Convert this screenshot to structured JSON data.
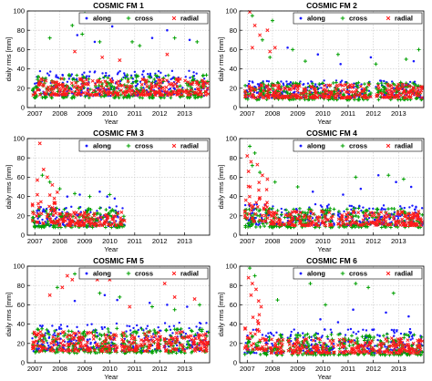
{
  "chart_data": [
    {
      "type": "scatter",
      "title": "COSMIC FM 1",
      "xlabel": "Year",
      "ylabel": "daily rms [mm]",
      "xlim": [
        2006.7,
        2014.0
      ],
      "ylim": [
        0,
        100
      ],
      "xticks": [
        "2007",
        "2008",
        "2009",
        "2010",
        "2011",
        "2012",
        "2013"
      ],
      "yticks": [
        "0",
        "20",
        "40",
        "60",
        "80",
        "100"
      ],
      "grid": true,
      "legend_position": "top-right",
      "legend": [
        "along",
        "cross",
        "radial"
      ],
      "dense_bands": [
        {
          "series": "along",
          "x": [
            2006.9,
            2013.95
          ],
          "y": [
            12,
            38
          ]
        },
        {
          "series": "cross",
          "x": [
            2006.9,
            2013.95
          ],
          "y": [
            10,
            35
          ]
        },
        {
          "series": "radial",
          "x": [
            2006.9,
            2013.95
          ],
          "y": [
            13,
            30
          ]
        }
      ],
      "outliers": [
        {
          "series": "along",
          "points": [
            [
              2009.9,
              97
            ],
            [
              2010.1,
              84
            ],
            [
              2010.6,
              95
            ],
            [
              2012.3,
              80
            ],
            [
              2008.7,
              75
            ],
            [
              2011.7,
              72
            ],
            [
              2013.2,
              70
            ],
            [
              2009.4,
              68
            ]
          ]
        },
        {
          "series": "cross",
          "points": [
            [
              2008.5,
              85
            ],
            [
              2009.0,
              97
            ],
            [
              2009.1,
              89
            ],
            [
              2007.6,
              72
            ],
            [
              2008.9,
              76
            ],
            [
              2009.6,
              68
            ],
            [
              2010.9,
              68
            ],
            [
              2012.6,
              72
            ],
            [
              2013.5,
              68
            ],
            [
              2011.2,
              64
            ]
          ]
        },
        {
          "series": "radial",
          "points": [
            [
              2008.6,
              58
            ],
            [
              2009.7,
              52
            ],
            [
              2012.3,
              55
            ],
            [
              2010.4,
              49
            ]
          ]
        }
      ],
      "gaps": []
    },
    {
      "type": "scatter",
      "title": "COSMIC FM 2",
      "xlabel": "Year",
      "ylabel": "daily rms [mm]",
      "xlim": [
        2006.7,
        2014.0
      ],
      "ylim": [
        0,
        100
      ],
      "xticks": [
        "2007",
        "2008",
        "2009",
        "2010",
        "2011",
        "2012",
        "2013"
      ],
      "yticks": [
        "0",
        "20",
        "40",
        "60",
        "80",
        "100"
      ],
      "grid": true,
      "legend_position": "top-right",
      "legend": [
        "along",
        "cross",
        "radial"
      ],
      "dense_bands": [
        {
          "series": "along",
          "x": [
            2006.9,
            2013.95
          ],
          "y": [
            10,
            28
          ]
        },
        {
          "series": "cross",
          "x": [
            2006.9,
            2013.95
          ],
          "y": [
            8,
            26
          ]
        },
        {
          "series": "radial",
          "x": [
            2006.9,
            2013.95
          ],
          "y": [
            10,
            24
          ]
        }
      ],
      "outliers": [
        {
          "series": "along",
          "points": [
            [
              2008.6,
              62
            ],
            [
              2009.8,
              55
            ],
            [
              2011.9,
              52
            ],
            [
              2013.6,
              48
            ],
            [
              2010.7,
              45
            ]
          ]
        },
        {
          "series": "cross",
          "points": [
            [
              2007.2,
              95
            ],
            [
              2008.0,
              90
            ],
            [
              2007.6,
              70
            ],
            [
              2008.8,
              60
            ],
            [
              2007.9,
              52
            ],
            [
              2009.3,
              48
            ],
            [
              2010.6,
              55
            ],
            [
              2012.1,
              45
            ],
            [
              2013.3,
              50
            ],
            [
              2013.8,
              60
            ]
          ]
        },
        {
          "series": "radial",
          "points": [
            [
              2007.1,
              99
            ],
            [
              2007.3,
              85
            ],
            [
              2007.5,
              75
            ],
            [
              2007.8,
              80
            ],
            [
              2007.2,
              62
            ],
            [
              2008.1,
              62
            ],
            [
              2007.9,
              58
            ]
          ]
        }
      ],
      "gaps": [
        [
          2011.9,
          2012.1
        ]
      ]
    },
    {
      "type": "scatter",
      "title": "COSMIC FM 3",
      "xlabel": "Year",
      "ylabel": "daily rms [mm]",
      "xlim": [
        2006.7,
        2014.0
      ],
      "ylim": [
        0,
        100
      ],
      "xticks": [
        "2007",
        "2008",
        "2009",
        "2010",
        "2011",
        "2012",
        "2013"
      ],
      "yticks": [
        "0",
        "20",
        "40",
        "60",
        "80",
        "100"
      ],
      "grid": true,
      "legend_position": "top-right",
      "legend": [
        "along",
        "cross",
        "radial"
      ],
      "dense_bands": [
        {
          "series": "along",
          "x": [
            2006.9,
            2010.6
          ],
          "y": [
            9,
            30
          ]
        },
        {
          "series": "cross",
          "x": [
            2006.9,
            2010.6
          ],
          "y": [
            8,
            28
          ]
        },
        {
          "series": "radial",
          "x": [
            2006.9,
            2007.9
          ],
          "y": [
            12,
            48
          ]
        },
        {
          "series": "radial",
          "x": [
            2007.9,
            2010.6
          ],
          "y": [
            10,
            24
          ]
        }
      ],
      "outliers": [
        {
          "series": "along",
          "points": [
            [
              2009.6,
              45
            ],
            [
              2009.9,
              40
            ],
            [
              2008.8,
              42
            ],
            [
              2010.2,
              38
            ],
            [
              2008.3,
              40
            ]
          ]
        },
        {
          "series": "cross",
          "points": [
            [
              2007.3,
              62
            ],
            [
              2007.6,
              55
            ],
            [
              2008.0,
              48
            ],
            [
              2008.6,
              43
            ],
            [
              2009.2,
              40
            ],
            [
              2010.0,
              42
            ]
          ]
        },
        {
          "series": "radial",
          "points": [
            [
              2007.2,
              95
            ],
            [
              2007.35,
              68
            ],
            [
              2007.5,
              60
            ],
            [
              2007.1,
              57
            ],
            [
              2007.7,
              52
            ]
          ]
        }
      ],
      "gaps": []
    },
    {
      "type": "scatter",
      "title": "COSMIC FM 4",
      "xlabel": "Year",
      "ylabel": "daily rms [mm]",
      "xlim": [
        2006.7,
        2014.0
      ],
      "ylim": [
        0,
        100
      ],
      "xticks": [
        "2007",
        "2008",
        "2009",
        "2010",
        "2011",
        "2012",
        "2013"
      ],
      "yticks": [
        "0",
        "20",
        "40",
        "60",
        "80",
        "100"
      ],
      "grid": true,
      "legend_position": "top-right",
      "legend": [
        "along",
        "cross",
        "radial"
      ],
      "dense_bands": [
        {
          "series": "along",
          "x": [
            2006.9,
            2013.95
          ],
          "y": [
            10,
            32
          ]
        },
        {
          "series": "cross",
          "x": [
            2006.9,
            2013.95
          ],
          "y": [
            8,
            28
          ]
        },
        {
          "series": "radial",
          "x": [
            2006.9,
            2007.9
          ],
          "y": [
            14,
            55
          ]
        },
        {
          "series": "radial",
          "x": [
            2007.9,
            2013.95
          ],
          "y": [
            10,
            25
          ]
        }
      ],
      "outliers": [
        {
          "series": "along",
          "points": [
            [
              2012.2,
              62
            ],
            [
              2012.9,
              55
            ],
            [
              2011.5,
              48
            ],
            [
              2013.5,
              50
            ],
            [
              2009.6,
              45
            ],
            [
              2010.8,
              42
            ]
          ]
        },
        {
          "series": "cross",
          "points": [
            [
              2007.1,
              92
            ],
            [
              2007.3,
              85
            ],
            [
              2007.2,
              72
            ],
            [
              2007.5,
              65
            ],
            [
              2008.1,
              55
            ],
            [
              2011.3,
              60
            ],
            [
              2012.6,
              62
            ],
            [
              2013.2,
              58
            ],
            [
              2009.0,
              50
            ]
          ]
        },
        {
          "series": "radial",
          "points": [
            [
              2007.0,
              82
            ],
            [
              2007.15,
              76
            ],
            [
              2007.4,
              73
            ],
            [
              2007.6,
              62
            ],
            [
              2007.8,
              58
            ],
            [
              2007.05,
              66
            ]
          ]
        }
      ],
      "gaps": [
        [
          2010.45,
          2010.6
        ]
      ]
    },
    {
      "type": "scatter",
      "title": "COSMIC FM 5",
      "xlabel": "Year",
      "ylabel": "daily rms [mm]",
      "xlim": [
        2006.7,
        2014.0
      ],
      "ylim": [
        0,
        100
      ],
      "xticks": [
        "2007",
        "2008",
        "2009",
        "2010",
        "2011",
        "2012",
        "2013"
      ],
      "yticks": [
        "0",
        "20",
        "40",
        "60",
        "80",
        "100"
      ],
      "grid": true,
      "legend_position": "top-right",
      "legend": [
        "along",
        "cross",
        "radial"
      ],
      "dense_bands": [
        {
          "series": "along",
          "x": [
            2006.9,
            2013.95
          ],
          "y": [
            12,
            42
          ]
        },
        {
          "series": "cross",
          "x": [
            2006.9,
            2013.95
          ],
          "y": [
            10,
            36
          ]
        },
        {
          "series": "radial",
          "x": [
            2006.9,
            2013.95
          ],
          "y": [
            12,
            32
          ]
        }
      ],
      "outliers": [
        {
          "series": "along",
          "points": [
            [
              2009.8,
              70
            ],
            [
              2010.3,
              65
            ],
            [
              2011.6,
              62
            ],
            [
              2012.3,
              60
            ],
            [
              2013.1,
              58
            ],
            [
              2008.6,
              64
            ]
          ]
        },
        {
          "series": "cross",
          "points": [
            [
              2007.9,
              78
            ],
            [
              2008.6,
              92
            ],
            [
              2009.1,
              92
            ],
            [
              2009.6,
              72
            ],
            [
              2010.4,
              68
            ],
            [
              2011.7,
              58
            ],
            [
              2012.6,
              55
            ],
            [
              2013.6,
              60
            ]
          ]
        },
        {
          "series": "radial",
          "points": [
            [
              2008.3,
              90
            ],
            [
              2008.5,
              86
            ],
            [
              2008.9,
              90
            ],
            [
              2009.3,
              89
            ],
            [
              2009.5,
              86
            ],
            [
              2009.7,
              90
            ],
            [
              2010.0,
              86
            ],
            [
              2008.1,
              78
            ],
            [
              2007.6,
              70
            ],
            [
              2012.2,
              82
            ],
            [
              2012.6,
              68
            ],
            [
              2013.4,
              66
            ],
            [
              2010.8,
              58
            ]
          ]
        }
      ],
      "gaps": [
        [
          2010.3,
          2010.45
        ],
        [
          2012.05,
          2012.15
        ]
      ]
    },
    {
      "type": "scatter",
      "title": "COSMIC FM 6",
      "xlabel": "Year",
      "ylabel": "daily rms [mm]",
      "xlim": [
        2006.7,
        2014.0
      ],
      "ylim": [
        0,
        100
      ],
      "xticks": [
        "2007",
        "2008",
        "2009",
        "2010",
        "2011",
        "2012",
        "2013"
      ],
      "yticks": [
        "0",
        "20",
        "40",
        "60",
        "80",
        "100"
      ],
      "grid": true,
      "legend_position": "top-right",
      "legend": [
        "along",
        "cross",
        "radial"
      ],
      "dense_bands": [
        {
          "series": "along",
          "x": [
            2006.9,
            2013.95
          ],
          "y": [
            10,
            35
          ]
        },
        {
          "series": "cross",
          "x": [
            2006.9,
            2013.95
          ],
          "y": [
            8,
            30
          ]
        },
        {
          "series": "radial",
          "x": [
            2006.9,
            2007.6
          ],
          "y": [
            14,
            50
          ]
        },
        {
          "series": "radial",
          "x": [
            2007.6,
            2013.95
          ],
          "y": [
            10,
            26
          ]
        }
      ],
      "outliers": [
        {
          "series": "along",
          "points": [
            [
              2011.2,
              55
            ],
            [
              2012.5,
              52
            ],
            [
              2013.4,
              48
            ],
            [
              2009.9,
              45
            ],
            [
              2010.6,
              42
            ]
          ]
        },
        {
          "series": "cross",
          "points": [
            [
              2007.1,
              98
            ],
            [
              2007.3,
              90
            ],
            [
              2009.5,
              82
            ],
            [
              2011.3,
              82
            ],
            [
              2011.8,
              78
            ],
            [
              2012.8,
              72
            ],
            [
              2008.2,
              65
            ],
            [
              2010.1,
              60
            ]
          ]
        },
        {
          "series": "radial",
          "points": [
            [
              2007.05,
              88
            ],
            [
              2007.2,
              82
            ],
            [
              2007.35,
              76
            ],
            [
              2007.15,
              70
            ],
            [
              2007.45,
              64
            ],
            [
              2007.55,
              58
            ]
          ]
        }
      ],
      "gaps": [
        [
          2008.45,
          2008.6
        ],
        [
          2010.45,
          2010.6
        ]
      ]
    }
  ],
  "series_styles": {
    "along": {
      "color": "#1a1aff",
      "marker": "dot"
    },
    "cross": {
      "color": "#00a000",
      "marker": "plus"
    },
    "radial": {
      "color": "#ff1a1a",
      "marker": "x"
    }
  }
}
